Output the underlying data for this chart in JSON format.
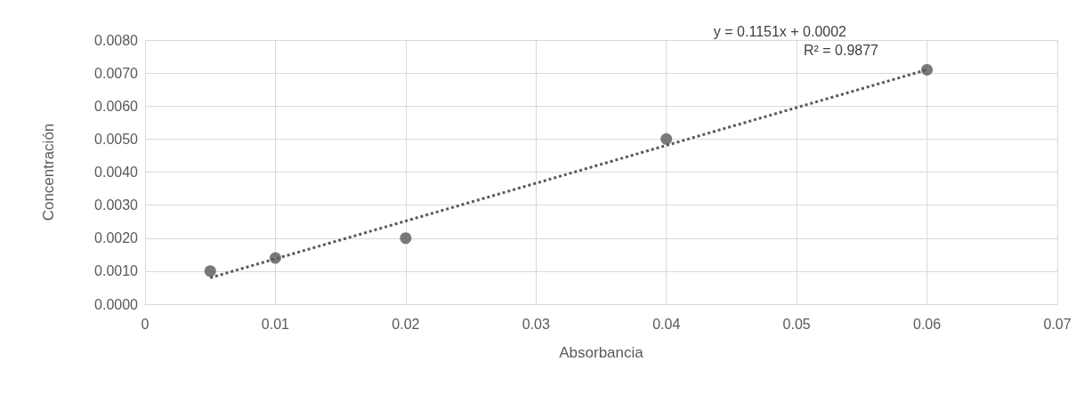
{
  "chart_data": {
    "type": "scatter",
    "xlabel": "Absorbancia",
    "ylabel": "Concentración",
    "annotations": [
      "y = 0.1151x + 0.0002",
      "R² = 0.9877"
    ],
    "xlim": [
      0,
      0.07
    ],
    "xticks": [
      0,
      0.01,
      0.02,
      0.03,
      0.04,
      0.05,
      0.06,
      0.07
    ],
    "ylim": [
      0,
      0.008
    ],
    "yticks": [
      {
        "value": 0,
        "label": "0.0000"
      },
      {
        "value": 0.001,
        "label": "0.0010"
      },
      {
        "value": 0.002,
        "label": "0.0020"
      },
      {
        "value": 0.003,
        "label": "0.0030"
      },
      {
        "value": 0.004,
        "label": "0.0040"
      },
      {
        "value": 0.005,
        "label": "0.0050"
      },
      {
        "value": 0.006,
        "label": "0.0060"
      },
      {
        "value": 0.007,
        "label": "0.0070"
      },
      {
        "value": 0.008,
        "label": "0.0080"
      }
    ],
    "grid": true,
    "marker": "circle",
    "series": [
      {
        "color": "#595959",
        "x": [
          0.005,
          0.01,
          0.02,
          0.04,
          0.06
        ],
        "values": [
          0.001,
          0.0014,
          0.002,
          0.005,
          0.0071
        ]
      },
      {
        "type": "line",
        "color": "#595959",
        "line_style": "dotted",
        "marker": "none",
        "x": [
          0.005,
          0.06
        ],
        "values": [
          0.0008,
          0.0071
        ]
      }
    ]
  }
}
